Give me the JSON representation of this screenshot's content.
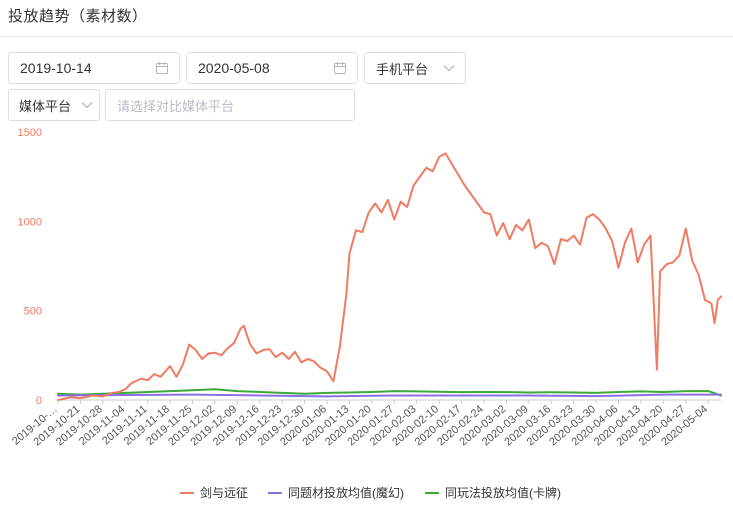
{
  "page": {
    "title": "投放趋势（素材数）"
  },
  "filters": {
    "start_date": "2019-10-14",
    "end_date": "2020-05-08",
    "platform": "手机平台",
    "media": "媒体平台",
    "compare_placeholder": "请选择对比媒体平台"
  },
  "colors": {
    "series_1": "#f07b62",
    "series_2": "#8a6ee6",
    "series_3": "#3aa935",
    "axis_text": "#f07b62",
    "x_axis_text": "#555555"
  },
  "chart_data": {
    "type": "line",
    "title": "",
    "xlabel": "",
    "ylabel": "",
    "ylim": [
      0,
      1500
    ],
    "yticks": [
      0,
      500,
      1000,
      1500
    ],
    "grid": false,
    "legend_position": "bottom",
    "x_start": "2019-10-14",
    "x_end": "2020-05-08",
    "tick_labels": [
      "2019-10-…",
      "2019-10-21",
      "2019-10-28",
      "2019-11-04",
      "2019-11-11",
      "2019-11-18",
      "2019-11-25",
      "2019-12-02",
      "2019-12-09",
      "2019-12-16",
      "2019-12-23",
      "2019-12-30",
      "2020-01-06",
      "2020-01-13",
      "2020-01-20",
      "2020-01-27",
      "2020-02-03",
      "2020-02-10",
      "2020-02-17",
      "2020-02-24",
      "2020-03-02",
      "2020-03-09",
      "2020-03-16",
      "2020-03-23",
      "2020-03-30",
      "2020-04-06",
      "2020-04-13",
      "2020-04-20",
      "2020-04-27",
      "2020-05-04"
    ],
    "series": [
      {
        "name": "剑与远征",
        "points": [
          [
            "2019-10-14",
            0
          ],
          [
            "2019-10-18",
            15
          ],
          [
            "2019-10-21",
            10
          ],
          [
            "2019-10-25",
            25
          ],
          [
            "2019-10-28",
            20
          ],
          [
            "2019-10-31",
            40
          ],
          [
            "2019-11-02",
            45
          ],
          [
            "2019-11-04",
            60
          ],
          [
            "2019-11-06",
            95
          ],
          [
            "2019-11-09",
            120
          ],
          [
            "2019-11-11",
            110
          ],
          [
            "2019-11-13",
            145
          ],
          [
            "2019-11-15",
            130
          ],
          [
            "2019-11-18",
            190
          ],
          [
            "2019-11-20",
            130
          ],
          [
            "2019-11-22",
            200
          ],
          [
            "2019-11-24",
            310
          ],
          [
            "2019-11-26",
            280
          ],
          [
            "2019-11-28",
            230
          ],
          [
            "2019-11-30",
            260
          ],
          [
            "2019-12-02",
            265
          ],
          [
            "2019-12-04",
            250
          ],
          [
            "2019-12-06",
            290
          ],
          [
            "2019-12-08",
            320
          ],
          [
            "2019-12-10",
            400
          ],
          [
            "2019-12-11",
            415
          ],
          [
            "2019-12-13",
            310
          ],
          [
            "2019-12-15",
            260
          ],
          [
            "2019-12-17",
            280
          ],
          [
            "2019-12-19",
            285
          ],
          [
            "2019-12-21",
            240
          ],
          [
            "2019-12-23",
            265
          ],
          [
            "2019-12-25",
            230
          ],
          [
            "2019-12-27",
            270
          ],
          [
            "2019-12-29",
            210
          ],
          [
            "2019-12-31",
            230
          ],
          [
            "2020-01-02",
            215
          ],
          [
            "2020-01-04",
            180
          ],
          [
            "2020-01-06",
            160
          ],
          [
            "2020-01-08",
            105
          ],
          [
            "2020-01-10",
            300
          ],
          [
            "2020-01-12",
            590
          ],
          [
            "2020-01-13",
            820
          ],
          [
            "2020-01-15",
            950
          ],
          [
            "2020-01-17",
            940
          ],
          [
            "2020-01-19",
            1050
          ],
          [
            "2020-01-21",
            1100
          ],
          [
            "2020-01-23",
            1050
          ],
          [
            "2020-01-25",
            1120
          ],
          [
            "2020-01-27",
            1010
          ],
          [
            "2020-01-29",
            1110
          ],
          [
            "2020-01-31",
            1080
          ],
          [
            "2020-02-02",
            1200
          ],
          [
            "2020-02-04",
            1250
          ],
          [
            "2020-02-06",
            1300
          ],
          [
            "2020-02-08",
            1280
          ],
          [
            "2020-02-10",
            1360
          ],
          [
            "2020-02-12",
            1380
          ],
          [
            "2020-02-14",
            1320
          ],
          [
            "2020-02-16",
            1260
          ],
          [
            "2020-02-18",
            1200
          ],
          [
            "2020-02-20",
            1150
          ],
          [
            "2020-02-22",
            1100
          ],
          [
            "2020-02-24",
            1050
          ],
          [
            "2020-02-26",
            1040
          ],
          [
            "2020-02-28",
            920
          ],
          [
            "2020-03-01",
            990
          ],
          [
            "2020-03-03",
            900
          ],
          [
            "2020-03-05",
            980
          ],
          [
            "2020-03-07",
            950
          ],
          [
            "2020-03-09",
            1010
          ],
          [
            "2020-03-11",
            850
          ],
          [
            "2020-03-13",
            880
          ],
          [
            "2020-03-15",
            860
          ],
          [
            "2020-03-17",
            760
          ],
          [
            "2020-03-19",
            900
          ],
          [
            "2020-03-21",
            890
          ],
          [
            "2020-03-23",
            920
          ],
          [
            "2020-03-25",
            870
          ],
          [
            "2020-03-27",
            1020
          ],
          [
            "2020-03-29",
            1040
          ],
          [
            "2020-03-31",
            1010
          ],
          [
            "2020-04-02",
            960
          ],
          [
            "2020-04-04",
            890
          ],
          [
            "2020-04-06",
            740
          ],
          [
            "2020-04-08",
            880
          ],
          [
            "2020-04-10",
            960
          ],
          [
            "2020-04-12",
            770
          ],
          [
            "2020-04-14",
            870
          ],
          [
            "2020-04-16",
            920
          ],
          [
            "2020-04-18",
            170
          ],
          [
            "2020-04-19",
            720
          ],
          [
            "2020-04-21",
            760
          ],
          [
            "2020-04-23",
            770
          ],
          [
            "2020-04-25",
            810
          ],
          [
            "2020-04-27",
            960
          ],
          [
            "2020-04-29",
            780
          ],
          [
            "2020-05-01",
            700
          ],
          [
            "2020-05-03",
            560
          ],
          [
            "2020-05-05",
            540
          ],
          [
            "2020-05-06",
            430
          ],
          [
            "2020-05-07",
            560
          ],
          [
            "2020-05-08",
            580
          ]
        ]
      },
      {
        "name": "同题材投放均值(魔幻)",
        "points": [
          [
            "2019-10-14",
            25
          ],
          [
            "2019-11-04",
            28
          ],
          [
            "2019-11-25",
            30
          ],
          [
            "2019-12-16",
            25
          ],
          [
            "2020-01-06",
            20
          ],
          [
            "2020-01-27",
            25
          ],
          [
            "2020-02-17",
            25
          ],
          [
            "2020-03-09",
            25
          ],
          [
            "2020-03-30",
            22
          ],
          [
            "2020-04-20",
            30
          ],
          [
            "2020-05-08",
            30
          ]
        ]
      },
      {
        "name": "同玩法投放均值(卡牌)",
        "points": [
          [
            "2019-10-14",
            35
          ],
          [
            "2019-10-21",
            30
          ],
          [
            "2019-10-28",
            35
          ],
          [
            "2019-11-04",
            40
          ],
          [
            "2019-11-11",
            45
          ],
          [
            "2019-11-18",
            50
          ],
          [
            "2019-11-25",
            55
          ],
          [
            "2019-12-02",
            60
          ],
          [
            "2019-12-09",
            50
          ],
          [
            "2019-12-16",
            45
          ],
          [
            "2019-12-23",
            40
          ],
          [
            "2019-12-30",
            35
          ],
          [
            "2020-01-06",
            40
          ],
          [
            "2020-01-13",
            42
          ],
          [
            "2020-01-20",
            45
          ],
          [
            "2020-01-27",
            50
          ],
          [
            "2020-02-03",
            48
          ],
          [
            "2020-02-10",
            46
          ],
          [
            "2020-02-17",
            44
          ],
          [
            "2020-02-24",
            45
          ],
          [
            "2020-03-02",
            44
          ],
          [
            "2020-03-09",
            42
          ],
          [
            "2020-03-16",
            43
          ],
          [
            "2020-03-23",
            42
          ],
          [
            "2020-03-30",
            40
          ],
          [
            "2020-04-06",
            45
          ],
          [
            "2020-04-13",
            48
          ],
          [
            "2020-04-20",
            45
          ],
          [
            "2020-04-27",
            50
          ],
          [
            "2020-05-04",
            50
          ],
          [
            "2020-05-08",
            25
          ]
        ]
      }
    ]
  }
}
